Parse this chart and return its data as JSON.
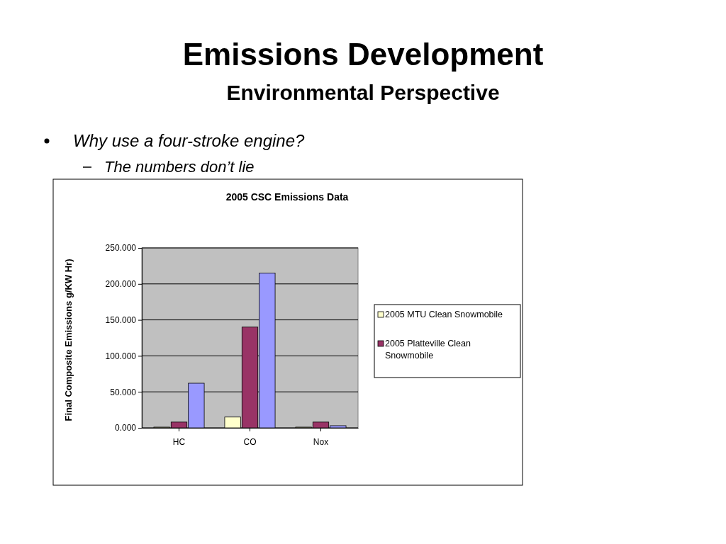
{
  "chart_data": {
    "type": "bar",
    "title": "Emissions Development",
    "subtitle": "Environmental Perspective",
    "annotations": [
      "Why use a four-stroke engine?",
      "The numbers don’t lie",
      "2005 CSC Emissions Data"
    ],
    "ylabel": "Final Composite Emissions g/KW Hr)",
    "categories": [
      "HC",
      "CO",
      "Nox"
    ],
    "series": [
      {
        "name": "2005 MTU Clean Snowmobile",
        "color": "#ffffcc",
        "values": [
          1,
          15,
          1
        ]
      },
      {
        "name": "2005 Platteville Clean Snowmobile",
        "color": "#993366",
        "values": [
          8,
          140,
          8
        ]
      },
      {
        "color": "#9999ff",
        "values": [
          62,
          215,
          3
        ]
      }
    ],
    "ylim": [
      0,
      250
    ],
    "yticks": [
      {
        "value": 0,
        "label": "0.000"
      },
      {
        "value": 50,
        "label": "50.000"
      },
      {
        "value": 100,
        "label": "100.000"
      },
      {
        "value": 150,
        "label": "150.000"
      },
      {
        "value": 200,
        "label": "200.000"
      },
      {
        "value": 250,
        "label": "250.000"
      }
    ],
    "grid": "y",
    "legend": "right"
  }
}
